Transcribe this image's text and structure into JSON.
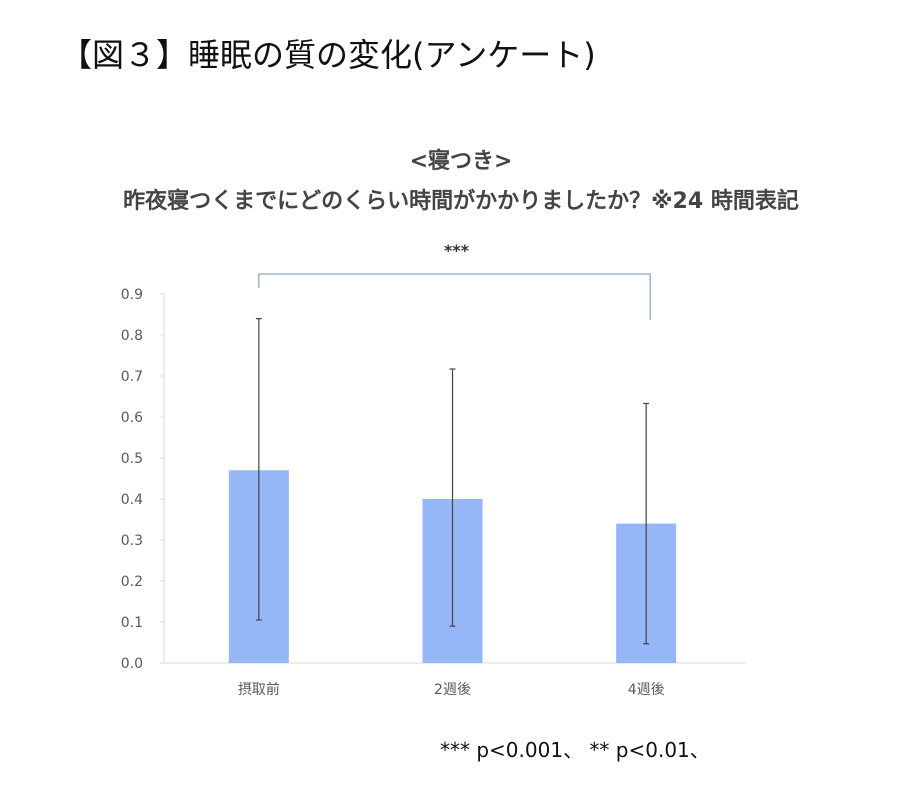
{
  "figure_title": "【図３】睡眠の質の変化(アンケート)",
  "chart_data": {
    "type": "bar",
    "title": "<寝つき>",
    "subtitle": "昨夜寝つくまでにどのくらい時間がかかりましたか？※24 時間表記",
    "categories": [
      "摂取前",
      "2週後",
      "4週後"
    ],
    "values": [
      0.47,
      0.4,
      0.34
    ],
    "error_upper": [
      0.84,
      0.717,
      0.633
    ],
    "error_lower": [
      0.105,
      0.09,
      0.047
    ],
    "ylim": [
      0,
      0.9
    ],
    "yticks": [
      "0.0",
      "0.1",
      "0.2",
      "0.3",
      "0.4",
      "0.5",
      "0.6",
      "0.7",
      "0.8",
      "0.9"
    ],
    "xlabel": "",
    "ylabel": "",
    "grid": false,
    "bar_color": "#95b6f7",
    "significance": {
      "from": "摂取前",
      "to": "4週後",
      "label": "***"
    },
    "footnote": "*** p<0.001、 ** p<0.01、"
  }
}
